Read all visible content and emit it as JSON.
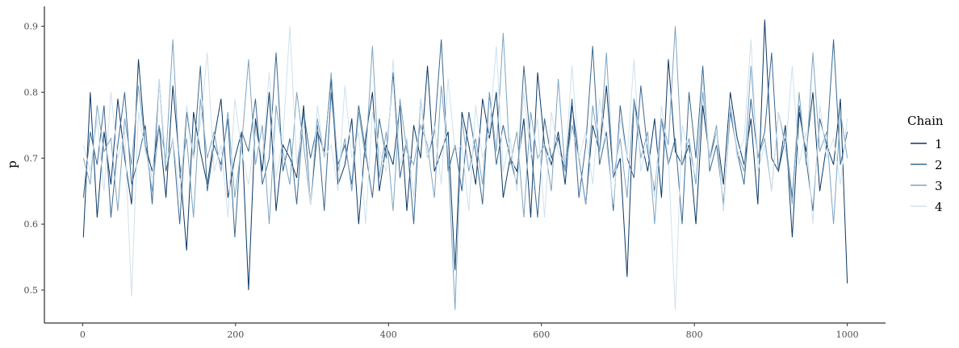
{
  "chart_data": {
    "type": "line",
    "title": "",
    "xlabel": "",
    "ylabel": "p",
    "xlim": [
      -50,
      1050
    ],
    "ylim": [
      0.45,
      0.93
    ],
    "x_ticks": [
      0,
      200,
      400,
      600,
      800,
      1000
    ],
    "x_tick_labels": [
      "0",
      "200",
      "400",
      "600",
      "800",
      "1000"
    ],
    "y_ticks": [
      0.5,
      0.6,
      0.7,
      0.8,
      0.9
    ],
    "y_tick_labels": [
      "0.5",
      "0.6",
      "0.7",
      "0.8",
      "0.9"
    ],
    "grid": false,
    "legend": {
      "title": "Chain",
      "placement": "right"
    },
    "series": [
      {
        "name": "1",
        "color": "#0b3866",
        "values": [
          0.58,
          0.8,
          0.61,
          0.74,
          0.66,
          0.79,
          0.7,
          0.63,
          0.85,
          0.72,
          0.68,
          0.75,
          0.64,
          0.81,
          0.69,
          0.56,
          0.77,
          0.71,
          0.66,
          0.73,
          0.79,
          0.64,
          0.7,
          0.74,
          0.5,
          0.76,
          0.68,
          0.8,
          0.62,
          0.72,
          0.7,
          0.67,
          0.78,
          0.63,
          0.74,
          0.71,
          0.82,
          0.66,
          0.69,
          0.76,
          0.6,
          0.73,
          0.8,
          0.65,
          0.72,
          0.69,
          0.78,
          0.62,
          0.75,
          0.7,
          0.84,
          0.68,
          0.71,
          0.74,
          0.53,
          0.77,
          0.72,
          0.66,
          0.79,
          0.73,
          0.8,
          0.64,
          0.7,
          0.68,
          0.76,
          0.61,
          0.83,
          0.72,
          0.69,
          0.74,
          0.66,
          0.78,
          0.7,
          0.63,
          0.75,
          0.71,
          0.81,
          0.67,
          0.7,
          0.52,
          0.79,
          0.73,
          0.68,
          0.76,
          0.64,
          0.85,
          0.71,
          0.69,
          0.72,
          0.6,
          0.78,
          0.7,
          0.74,
          0.66,
          0.8,
          0.73,
          0.69,
          0.76,
          0.63,
          0.91,
          0.7,
          0.68,
          0.75,
          0.58,
          0.77,
          0.71,
          0.8,
          0.65,
          0.72,
          0.69,
          0.79,
          0.51
        ]
      },
      {
        "name": "2",
        "color": "#3a6891",
        "values": [
          0.64,
          0.74,
          0.69,
          0.78,
          0.61,
          0.72,
          0.8,
          0.66,
          0.7,
          0.75,
          0.63,
          0.82,
          0.68,
          0.73,
          0.6,
          0.77,
          0.7,
          0.84,
          0.65,
          0.72,
          0.69,
          0.76,
          0.58,
          0.74,
          0.71,
          0.79,
          0.66,
          0.7,
          0.86,
          0.68,
          0.73,
          0.63,
          0.77,
          0.7,
          0.75,
          0.62,
          0.8,
          0.69,
          0.72,
          0.66,
          0.78,
          0.71,
          0.64,
          0.76,
          0.7,
          0.83,
          0.67,
          0.73,
          0.6,
          0.79,
          0.7,
          0.74,
          0.88,
          0.68,
          0.72,
          0.65,
          0.77,
          0.71,
          0.63,
          0.8,
          0.69,
          0.75,
          0.7,
          0.66,
          0.84,
          0.72,
          0.61,
          0.76,
          0.7,
          0.73,
          0.68,
          0.79,
          0.64,
          0.72,
          0.87,
          0.69,
          0.74,
          0.62,
          0.78,
          0.7,
          0.67,
          0.81,
          0.71,
          0.65,
          0.76,
          0.69,
          0.73,
          0.6,
          0.8,
          0.7,
          0.84,
          0.68,
          0.72,
          0.63,
          0.77,
          0.71,
          0.66,
          0.79,
          0.7,
          0.74,
          0.86,
          0.68,
          0.73,
          0.64,
          0.78,
          0.7,
          0.62,
          0.76,
          0.72,
          0.88,
          0.69,
          0.74
        ]
      },
      {
        "name": "3",
        "color": "#7ea5c1",
        "values": [
          0.7,
          0.66,
          0.78,
          0.71,
          0.73,
          0.62,
          0.76,
          0.69,
          0.81,
          0.72,
          0.65,
          0.75,
          0.7,
          0.88,
          0.67,
          0.73,
          0.61,
          0.79,
          0.7,
          0.74,
          0.68,
          0.77,
          0.64,
          0.72,
          0.85,
          0.69,
          0.75,
          0.6,
          0.78,
          0.71,
          0.66,
          0.8,
          0.72,
          0.63,
          0.76,
          0.7,
          0.83,
          0.68,
          0.73,
          0.65,
          0.77,
          0.7,
          0.87,
          0.67,
          0.74,
          0.62,
          0.79,
          0.71,
          0.69,
          0.75,
          0.72,
          0.64,
          0.81,
          0.7,
          0.47,
          0.76,
          0.68,
          0.73,
          0.66,
          0.8,
          0.71,
          0.89,
          0.69,
          0.74,
          0.61,
          0.77,
          0.7,
          0.72,
          0.65,
          0.82,
          0.68,
          0.75,
          0.7,
          0.63,
          0.78,
          0.71,
          0.86,
          0.67,
          0.73,
          0.64,
          0.79,
          0.7,
          0.74,
          0.6,
          0.76,
          0.72,
          0.9,
          0.69,
          0.73,
          0.66,
          0.8,
          0.7,
          0.75,
          0.62,
          0.78,
          0.71,
          0.68,
          0.84,
          0.7,
          0.73,
          0.65,
          0.77,
          0.72,
          0.63,
          0.8,
          0.69,
          0.86,
          0.71,
          0.74,
          0.6,
          0.77,
          0.7
        ]
      },
      {
        "name": "4",
        "color": "#cfe1ee",
        "values": [
          0.72,
          0.68,
          0.76,
          0.65,
          0.8,
          0.7,
          0.74,
          0.49,
          0.77,
          0.71,
          0.67,
          0.82,
          0.69,
          0.73,
          0.64,
          0.78,
          0.7,
          0.75,
          0.86,
          0.68,
          0.72,
          0.61,
          0.79,
          0.71,
          0.66,
          0.74,
          0.7,
          0.83,
          0.67,
          0.73,
          0.9,
          0.69,
          0.76,
          0.63,
          0.78,
          0.7,
          0.72,
          0.65,
          0.81,
          0.7,
          0.74,
          0.6,
          0.77,
          0.71,
          0.68,
          0.85,
          0.69,
          0.73,
          0.64,
          0.79,
          0.7,
          0.75,
          0.66,
          0.82,
          0.71,
          0.72,
          0.62,
          0.78,
          0.7,
          0.74,
          0.87,
          0.68,
          0.73,
          0.65,
          0.8,
          0.7,
          0.76,
          0.61,
          0.77,
          0.71,
          0.69,
          0.84,
          0.7,
          0.74,
          0.66,
          0.79,
          0.72,
          0.63,
          0.76,
          0.7,
          0.85,
          0.68,
          0.73,
          0.64,
          0.78,
          0.7,
          0.47,
          0.75,
          0.71,
          0.67,
          0.82,
          0.69,
          0.74,
          0.62,
          0.79,
          0.7,
          0.73,
          0.88,
          0.68,
          0.72,
          0.65,
          0.77,
          0.71,
          0.84,
          0.69,
          0.74,
          0.6,
          0.78,
          0.7,
          0.73,
          0.66,
          0.76
        ]
      }
    ]
  }
}
